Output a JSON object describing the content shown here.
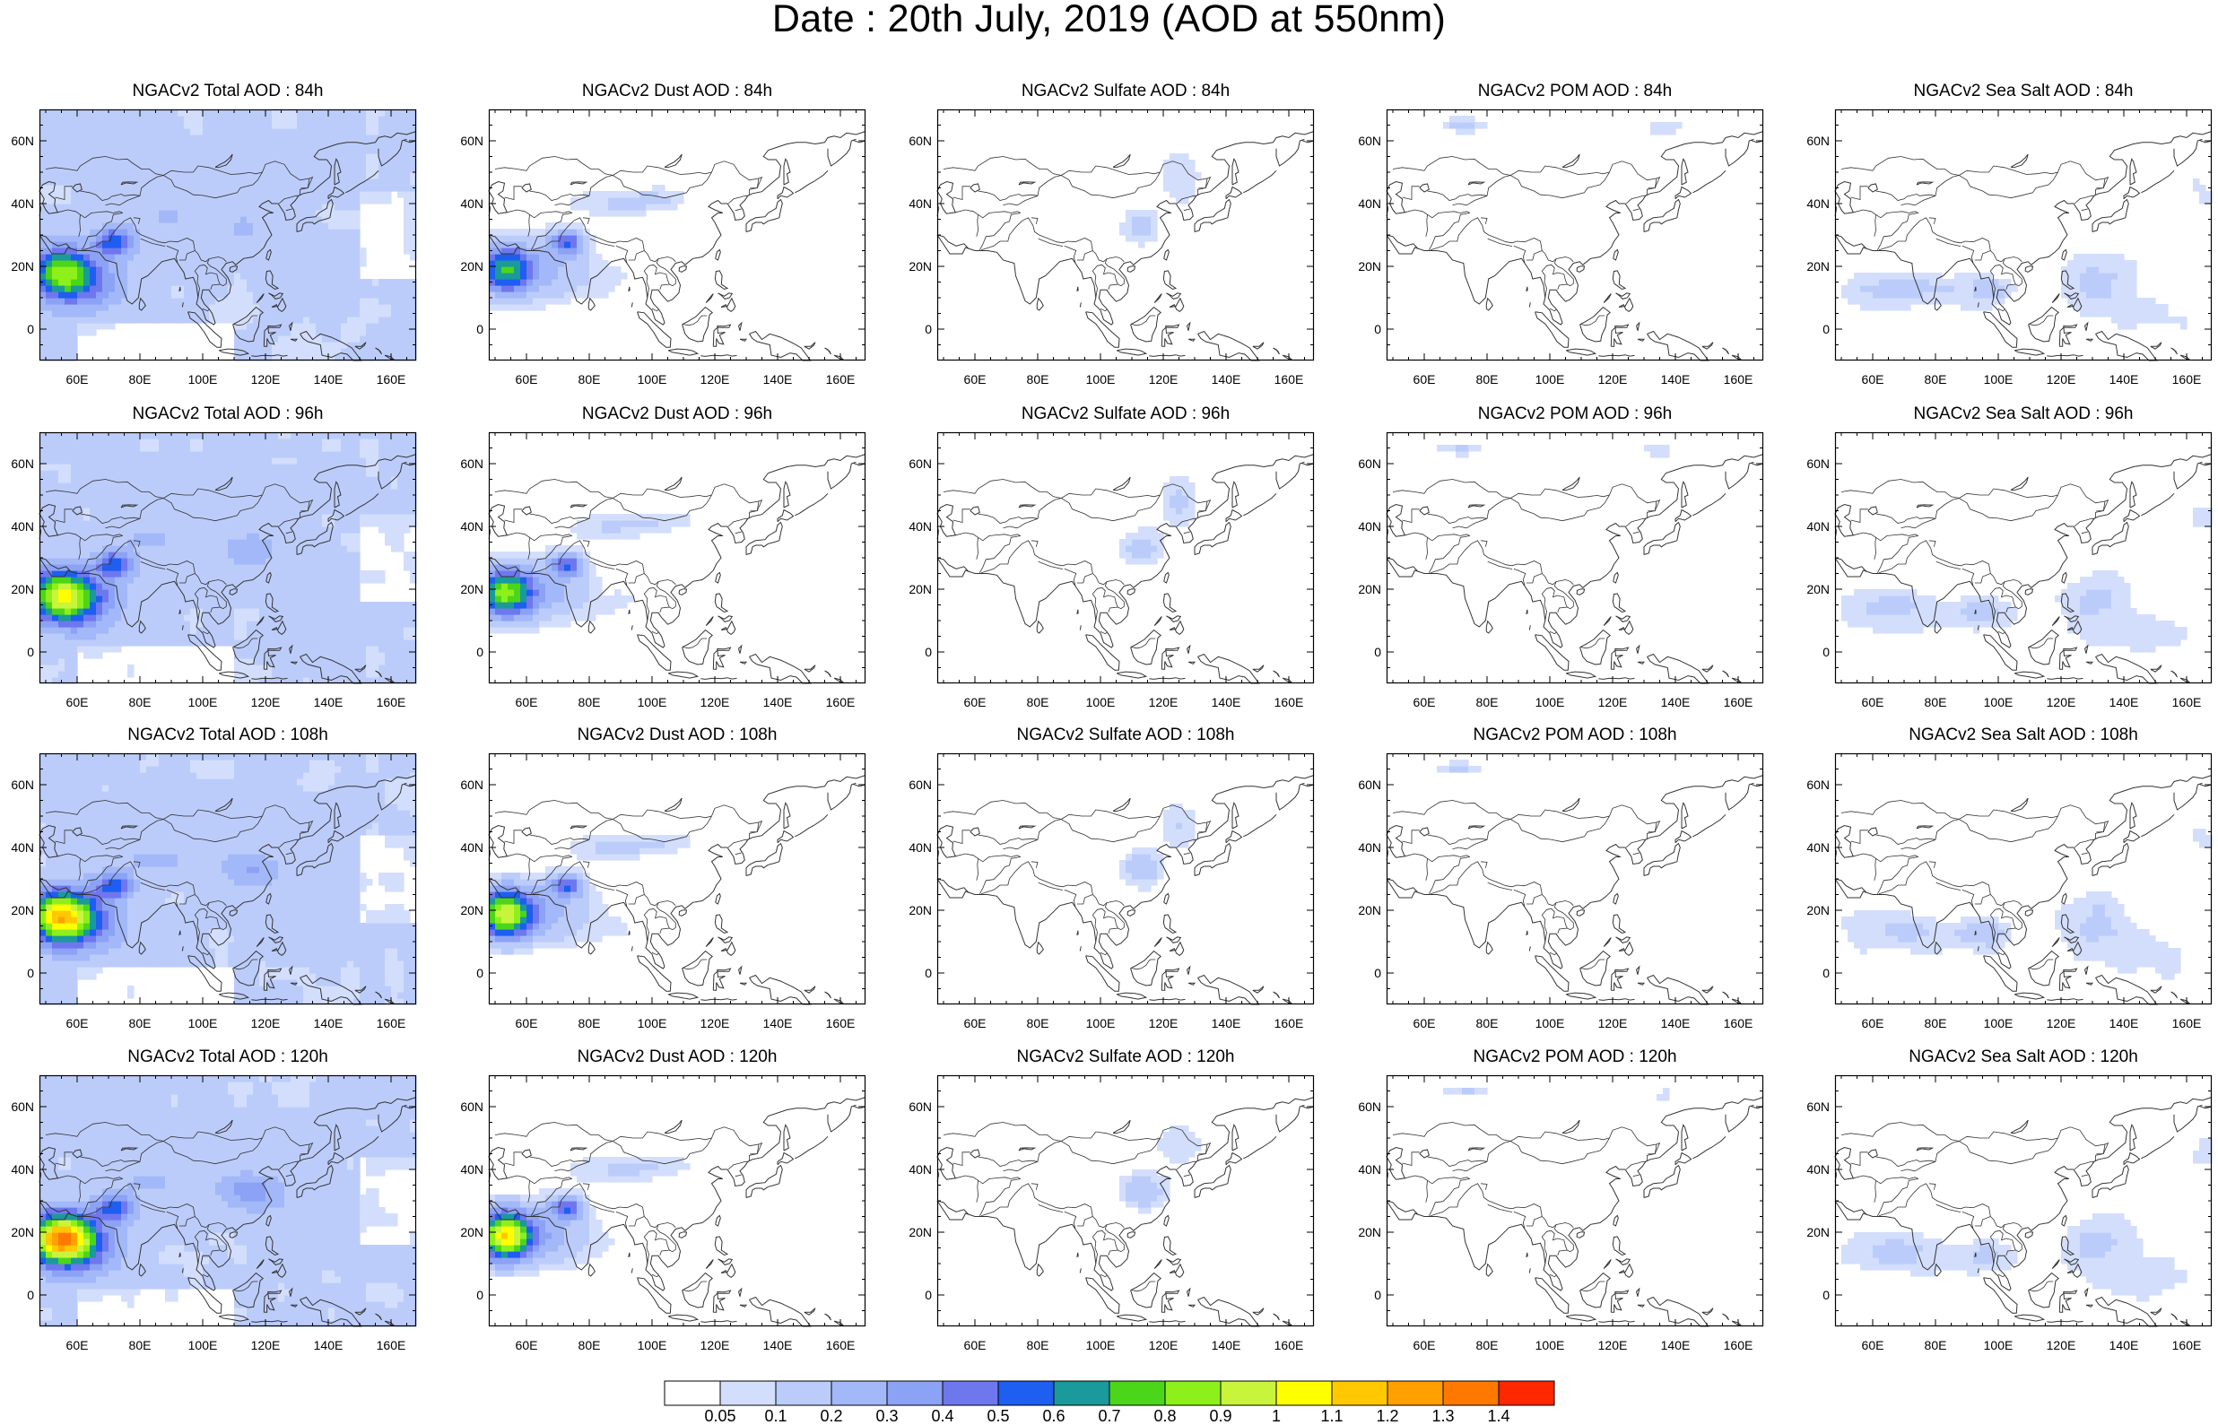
{
  "title": "Date : 20th July, 2019 (AOD at 550nm)",
  "panels": [
    [
      "NGACv2 Total AOD : 84h",
      "NGACv2 Dust AOD : 84h",
      "NGACv2 Sulfate AOD : 84h",
      "NGACv2 POM AOD : 84h",
      "NGACv2 Sea Salt AOD : 84h"
    ],
    [
      "NGACv2 Total AOD : 96h",
      "NGACv2 Dust AOD : 96h",
      "NGACv2 Sulfate AOD : 96h",
      "NGACv2 POM AOD : 96h",
      "NGACv2 Sea Salt AOD : 96h"
    ],
    [
      "NGACv2 Total AOD : 108h",
      "NGACv2 Dust AOD : 108h",
      "NGACv2 Sulfate AOD : 108h",
      "NGACv2 POM AOD : 108h",
      "NGACv2 Sea Salt AOD : 108h"
    ],
    [
      "NGACv2 Total AOD : 120h",
      "NGACv2 Dust AOD : 120h",
      "NGACv2 Sulfate AOD : 120h",
      "NGACv2 POM AOD : 120h",
      "NGACv2 Sea Salt  AOD : 120h"
    ]
  ],
  "lat_labels": [
    "60N",
    "40N",
    "20N",
    "0"
  ],
  "lon_labels": [
    "60E",
    "80E",
    "100E",
    "120E",
    "140E",
    "160E"
  ],
  "colorbar": {
    "labels": [
      "0.05",
      "0.1",
      "0.2",
      "0.3",
      "0.4",
      "0.5",
      "0.6",
      "0.7",
      "0.8",
      "0.9",
      "1",
      "1.1",
      "1.2",
      "1.3",
      "1.4"
    ],
    "colors": [
      "#ffffff",
      "#d3defc",
      "#bcccfa",
      "#a3b8f8",
      "#8ca2f5",
      "#6f77ef",
      "#1e5ef0",
      "#1a9a9a",
      "#4bd61a",
      "#8ef01a",
      "#c8f53c",
      "#ffff00",
      "#ffc800",
      "#ffa000",
      "#ff7800",
      "#ff2800"
    ]
  }
}
